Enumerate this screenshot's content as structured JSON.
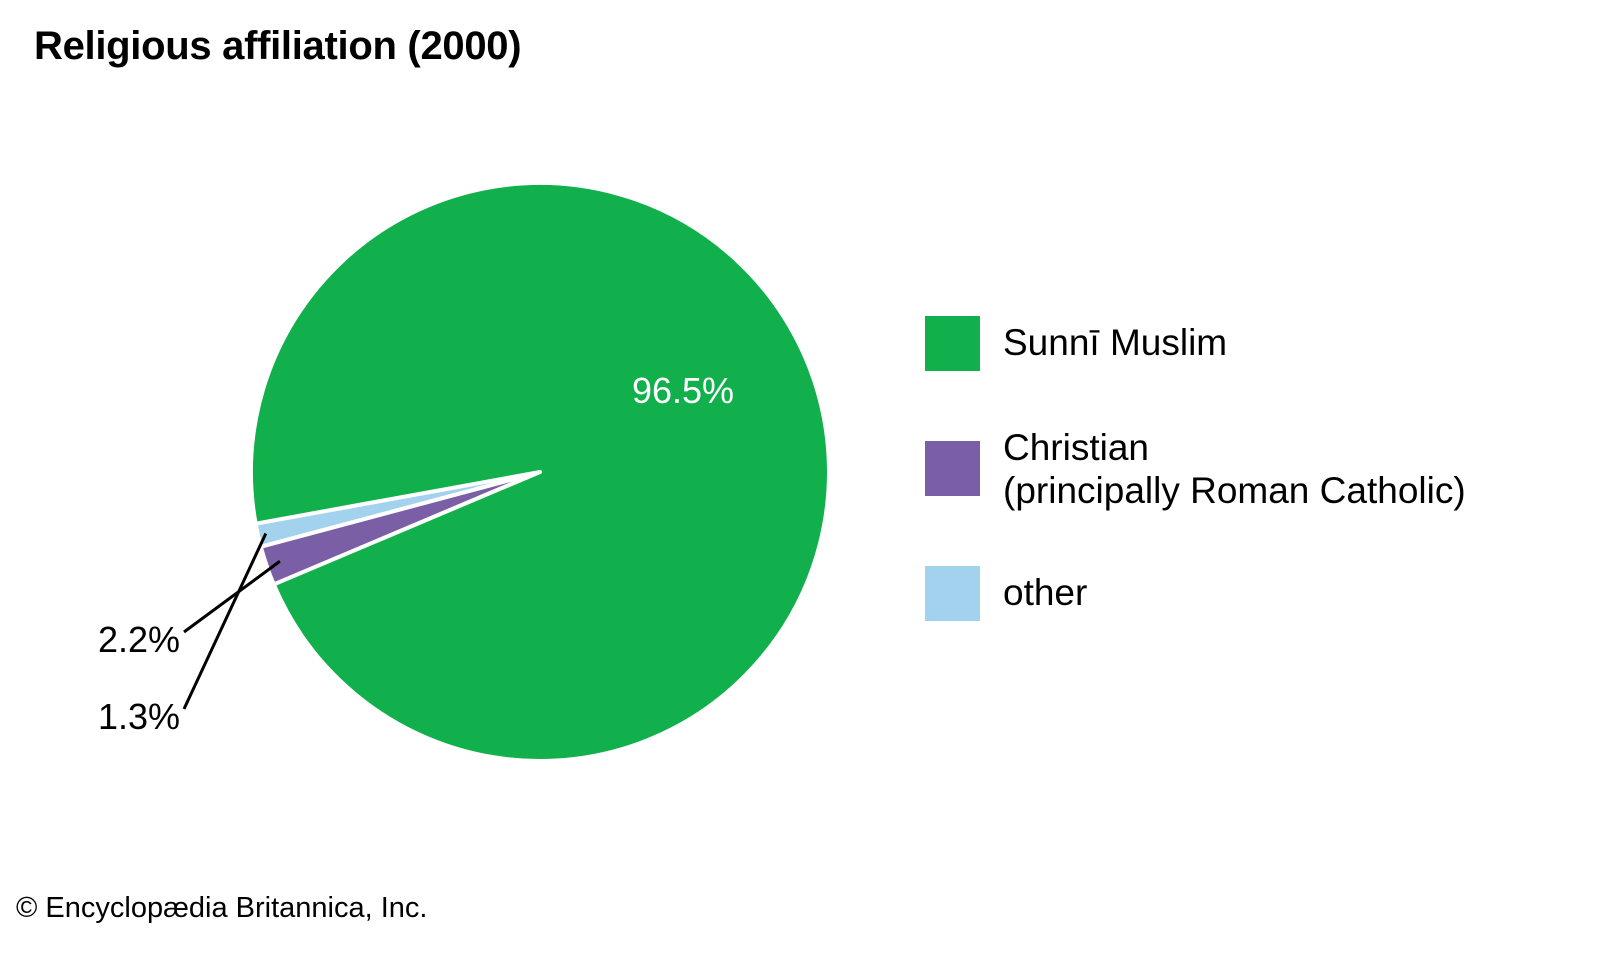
{
  "title": "Religious affiliation (2000)",
  "credit": "© Encyclopædia Britannica, Inc.",
  "colors": {
    "sunni": "#11b04d",
    "christian": "#7a5fa6",
    "other": "#a2d2ee",
    "background": "#ffffff"
  },
  "chart_data": {
    "type": "pie",
    "title": "Religious affiliation (2000)",
    "slices": [
      {
        "label": "Sunnī Muslim",
        "value": 96.5,
        "display": "96.5%",
        "color": "#11b04d"
      },
      {
        "label": "Christian (principally Roman Catholic)",
        "value": 2.2,
        "display": "2.2%",
        "color": "#7a5fa6"
      },
      {
        "label": "other",
        "value": 1.3,
        "display": "1.3%",
        "color": "#a2d2ee"
      }
    ],
    "legend_position": "right",
    "legend": [
      {
        "line1": "Sunnī Muslim",
        "line2": ""
      },
      {
        "line1": "Christian",
        "line2": "(principally Roman Catholic)"
      },
      {
        "line1": "other",
        "line2": ""
      }
    ]
  }
}
